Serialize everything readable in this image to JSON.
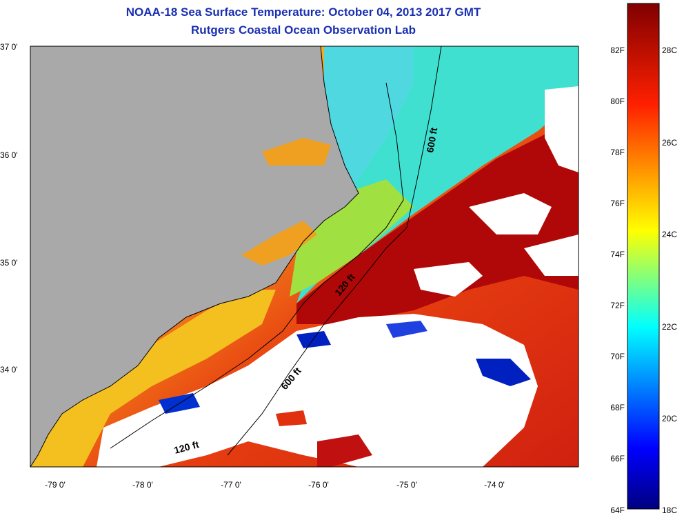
{
  "header": {
    "title": "NOAA-18 Sea Surface Temperature:  October 04, 2013 2017 GMT",
    "subtitle": "Rutgers Coastal Ocean Observation Lab"
  },
  "map": {
    "lat_labels": [
      "37 0'",
      "36 0'",
      "35 0'",
      "34 0'"
    ],
    "lon_labels": [
      "-79 0'",
      "-78 0'",
      "-77 0'",
      "-76 0'",
      "-75 0'",
      "-74 0'"
    ],
    "contours": [
      "600 ft",
      "120 ft",
      "600 ft",
      "120 ft"
    ],
    "land_color": "#a9a9a9",
    "cloud_color": "#ffffff"
  },
  "colorbar": {
    "fahrenheit": [
      "82F",
      "80F",
      "78F",
      "76F",
      "74F",
      "72F",
      "70F",
      "68F",
      "66F",
      "64F"
    ],
    "celsius": [
      "28C",
      "26C",
      "24C",
      "22C",
      "20C",
      "18C"
    ]
  }
}
